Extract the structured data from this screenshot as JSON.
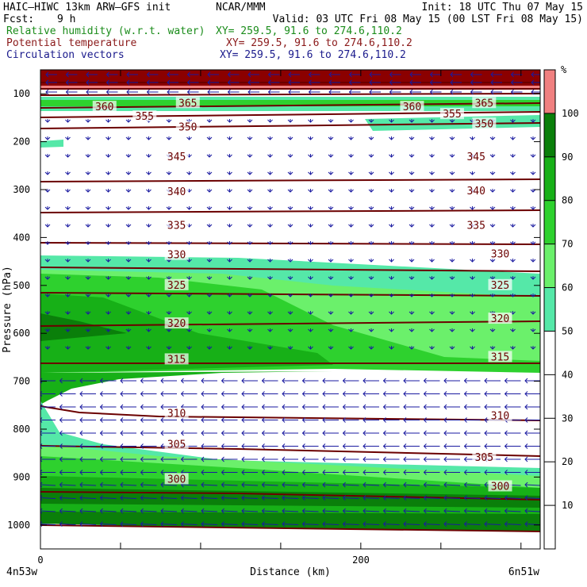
{
  "header": {
    "model": "HAIC–HIWC 13km ARW–GFS init",
    "center": "NCAR/MMM",
    "init": "Init: 18 UTC Thu 07 May 15",
    "fcst_label": "Fcst:",
    "fcst_value": "9 h",
    "valid": "Valid: 03 UTC Fri 08 May 15 (00 LST Fri 08 May 15)",
    "fields": [
      {
        "name": "Relative humidity (w.r.t. water)",
        "xy": "XY= 259.5, 91.6 to 274.6,110.2",
        "color": "#1a8c1a"
      },
      {
        "name": "Potential temperature",
        "xy": "XY= 259.5, 91.6 to 274.6,110.2",
        "color": "#8b1a1a"
      },
      {
        "name": "Circulation vectors",
        "xy": "XY= 259.5, 91.6 to 274.6,110.2",
        "color": "#1a1a8c"
      }
    ]
  },
  "chart_data": {
    "type": "contour-cross-section",
    "xlabel": "Distance (km)",
    "ylabel": "Pressure (hPa)",
    "x_ticks": [
      "0",
      "200"
    ],
    "x_range": [
      0,
      312
    ],
    "y_ticks": [
      100,
      200,
      300,
      400,
      500,
      600,
      700,
      800,
      900,
      1000
    ],
    "y_range": [
      50,
      1050
    ],
    "y_scale": "linear-inverted",
    "endpoints": {
      "left": "4n53w",
      "right": "6n51w"
    },
    "colorbar": {
      "unit": "%",
      "ticks": [
        10,
        20,
        30,
        40,
        50,
        60,
        70,
        80,
        90,
        100
      ],
      "bands": [
        {
          "from": 50,
          "to": 60,
          "color": "#55e8a8"
        },
        {
          "from": 60,
          "to": 70,
          "color": "#6bf06b"
        },
        {
          "from": 70,
          "to": 80,
          "color": "#2ed12e"
        },
        {
          "from": 80,
          "to": 90,
          "color": "#17b017"
        },
        {
          "from": 90,
          "to": 100,
          "color": "#0a7f0a"
        },
        {
          "from": 100,
          "to": 110,
          "color": "#f08080"
        }
      ]
    },
    "theta_contours": [
      {
        "value": 300,
        "labels": [
          {
            "x": 85,
            "p": 905
          },
          {
            "x": 287,
            "p": 920
          }
        ]
      },
      {
        "value": 305,
        "labels": [
          {
            "x": 85,
            "p": 832
          },
          {
            "x": 277,
            "p": 860
          }
        ]
      },
      {
        "value": 310,
        "labels": [
          {
            "x": 85,
            "p": 768
          },
          {
            "x": 287,
            "p": 773
          }
        ]
      },
      {
        "value": 315,
        "labels": [
          {
            "x": 85,
            "p": 655
          },
          {
            "x": 287,
            "p": 650
          }
        ]
      },
      {
        "value": 320,
        "labels": [
          {
            "x": 85,
            "p": 580
          },
          {
            "x": 287,
            "p": 570
          }
        ]
      },
      {
        "value": 325,
        "labels": [
          {
            "x": 85,
            "p": 500
          },
          {
            "x": 287,
            "p": 500
          }
        ]
      },
      {
        "value": 330,
        "labels": [
          {
            "x": 85,
            "p": 437
          },
          {
            "x": 287,
            "p": 435
          }
        ]
      },
      {
        "value": 335,
        "labels": [
          {
            "x": 85,
            "p": 375
          },
          {
            "x": 272,
            "p": 375
          }
        ]
      },
      {
        "value": 340,
        "labels": [
          {
            "x": 85,
            "p": 305
          },
          {
            "x": 272,
            "p": 303
          }
        ]
      },
      {
        "value": 345,
        "labels": [
          {
            "x": 85,
            "p": 232
          },
          {
            "x": 272,
            "p": 232
          }
        ]
      },
      {
        "value": 350,
        "labels": [
          {
            "x": 92,
            "p": 170
          },
          {
            "x": 277,
            "p": 163
          }
        ]
      },
      {
        "value": 355,
        "labels": [
          {
            "x": 65,
            "p": 148
          },
          {
            "x": 257,
            "p": 143
          }
        ]
      },
      {
        "value": 360,
        "labels": [
          {
            "x": 40,
            "p": 128
          },
          {
            "x": 232,
            "p": 128
          }
        ]
      },
      {
        "value": 365,
        "labels": [
          {
            "x": 92,
            "p": 120
          },
          {
            "x": 277,
            "p": 120
          }
        ]
      }
    ],
    "wind": {
      "top_layer": "strong westward flow above 150 hPa",
      "upper": "weak mostly downward-pointing vectors 150-450 hPa",
      "lower": "westward (leftward) flow 650-1000 hPa"
    }
  }
}
